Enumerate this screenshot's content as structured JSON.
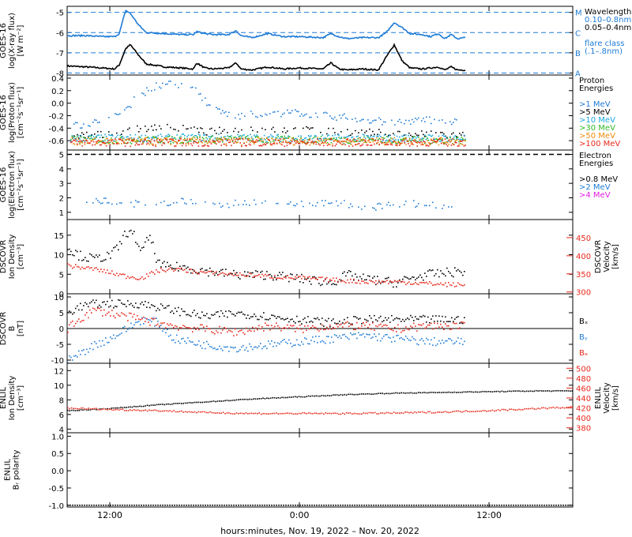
{
  "figure": {
    "xlabel": "hours:minutes, Nov. 19, 2022 – Nov. 20, 2022",
    "x_ticks": [
      "12:00",
      "0:00",
      "12:00"
    ],
    "x_tick_hours": [
      12,
      24,
      36
    ],
    "x_range_hours": [
      9.3,
      41.3
    ],
    "data_end_hours": 34.5
  },
  "colors": {
    "black": "#000000",
    "blue": "#1e7bd6",
    "sky": "#19a8e0",
    "red": "#e8281c",
    "green": "#33b82c",
    "orange": "#ee8c10",
    "magenta": "#e020e0"
  },
  "panels": [
    {
      "id": "xray",
      "ylabel": [
        "GOES-16",
        "log(X-ray flux)",
        "[W m⁻²]"
      ],
      "ylim": [
        -8.1,
        -4.7
      ],
      "yticks": [
        "-5",
        "-6",
        "-7",
        "-8"
      ],
      "ytick_values": [
        -5,
        -6,
        -7,
        -8
      ],
      "flare_levels": [
        {
          "label": "M",
          "value": -5
        },
        {
          "label": "C",
          "value": -6
        },
        {
          "label": "B",
          "value": -7
        },
        {
          "label": "A",
          "value": -8
        }
      ],
      "legend": [
        "Wavelength",
        "0.10–0.8nm",
        "0.05–0.4nm",
        "",
        "flare class",
        "(.1–.8nm)"
      ]
    },
    {
      "id": "proton",
      "ylabel": [
        "GOES-16",
        "log(Proton flux)",
        "[cm⁻²s⁻¹sr⁻¹]"
      ],
      "ylim": [
        -0.75,
        0.45
      ],
      "yticks": [
        "0.4",
        "0.2",
        "0.0",
        "-0.2",
        "-0.4",
        "-0.6"
      ],
      "ytick_values": [
        0.4,
        0.2,
        0.0,
        -0.2,
        -0.4,
        -0.6
      ],
      "legend": [
        "Proton",
        "Energies",
        "",
        ">1 MeV",
        ">5 MeV",
        ">10 MeV",
        ">30 MeV",
        ">50 MeV",
        ">100 MeV"
      ]
    },
    {
      "id": "electron",
      "ylabel": [
        "GOES-16",
        "log(Electron flux)",
        "[cm⁻²s⁻¹sr⁻¹]"
      ],
      "ylim": [
        0.5,
        5.3
      ],
      "yticks": [
        "5",
        "4",
        "3",
        "2",
        "1"
      ],
      "ytick_values": [
        5,
        4,
        3,
        2,
        1
      ],
      "legend": [
        "Electron",
        "Energies",
        "",
        ">0.8 MeV",
        ">2 MeV",
        ">4 MeV"
      ]
    },
    {
      "id": "dscovr_density",
      "ylabel": [
        "DSCOVR",
        "Ion Density",
        "[cm⁻³]"
      ],
      "ylim": [
        0,
        19
      ],
      "yticks": [
        "15",
        "10",
        "5",
        "0"
      ],
      "ytick_values": [
        15,
        10,
        5,
        0
      ],
      "ylabel_right": [
        "DSCOVR",
        "Velocity",
        "[km/s]"
      ],
      "y2lim": [
        295,
        500
      ],
      "y2ticks": [
        "450",
        "400",
        "350",
        "300"
      ],
      "y2tick_values": [
        450,
        400,
        350,
        300
      ]
    },
    {
      "id": "dscovr_b",
      "ylabel": [
        "DSCOVR",
        "B",
        "[nT]"
      ],
      "ylim": [
        -11,
        11
      ],
      "yticks": [
        "10",
        "5",
        "0",
        "-5",
        "-10"
      ],
      "ytick_values": [
        10,
        5,
        0,
        -5,
        -10
      ],
      "legend": [
        "Bₓ",
        "Bᵧ",
        "Bₔ"
      ]
    },
    {
      "id": "enlil_density",
      "ylabel": [
        "ENLIL",
        "Ion Density",
        "[cm⁻³]"
      ],
      "ylim": [
        3.5,
        13
      ],
      "yticks": [
        "12",
        "10",
        "8",
        "6",
        "4"
      ],
      "ytick_values": [
        12,
        10,
        8,
        6,
        4
      ],
      "ylabel_right": [
        "ENLIL",
        "Velocity",
        "[km/s]"
      ],
      "y2lim": [
        370,
        510
      ],
      "y2ticks": [
        "500",
        "480",
        "460",
        "440",
        "420",
        "400",
        "380"
      ],
      "y2tick_values": [
        500,
        480,
        460,
        440,
        420,
        400,
        380
      ]
    },
    {
      "id": "enlil_polarity",
      "ylabel": [
        "ENLIL",
        "Bᵣ polarity"
      ],
      "ylim": [
        -1.05,
        1.1
      ],
      "yticks": [
        "1.0",
        "0.5",
        "0.0",
        "-0.5",
        "-1.0"
      ],
      "ytick_values": [
        1.0,
        0.5,
        0.0,
        -0.5,
        -1.0
      ]
    }
  ],
  "chart_data": [
    {
      "type": "line",
      "panel": "xray",
      "x_unit": "hours since 00:00 Nov. 19, 2022",
      "series": [
        {
          "name": "0.10–0.8nm",
          "color": "#000000",
          "x": [
            9.3,
            10.5,
            11.5,
            12.3,
            12.6,
            13.0,
            13.3,
            13.8,
            14.3,
            15.5,
            16.5,
            17.3,
            17.5,
            18.0,
            18.5,
            19.5,
            20.0,
            20.3,
            21.0,
            22.0,
            23.0,
            24.0,
            25.5,
            26.0,
            26.5,
            27.0,
            28.0,
            29.0,
            29.5,
            30.0,
            30.5,
            31.0,
            31.8,
            32.3,
            32.8,
            33.2,
            33.6,
            34.0,
            34.5
          ],
          "y": [
            -7.65,
            -7.7,
            -7.75,
            -7.8,
            -7.6,
            -6.8,
            -6.6,
            -7.1,
            -7.55,
            -7.7,
            -7.75,
            -7.8,
            -7.5,
            -7.75,
            -7.8,
            -7.75,
            -7.5,
            -7.8,
            -7.85,
            -7.7,
            -7.8,
            -7.75,
            -7.8,
            -7.5,
            -7.8,
            -7.85,
            -7.8,
            -7.85,
            -7.2,
            -6.6,
            -7.4,
            -7.75,
            -7.8,
            -7.75,
            -7.7,
            -7.85,
            -7.7,
            -7.85,
            -7.85
          ]
        },
        {
          "name": "0.05–0.4nm",
          "color": "#1e7bd6",
          "x": [
            9.3,
            10.5,
            11.5,
            12.3,
            12.6,
            13.0,
            13.3,
            13.8,
            14.3,
            15.5,
            16.5,
            17.3,
            17.5,
            18.0,
            18.5,
            19.5,
            20.0,
            20.3,
            21.0,
            22.0,
            23.0,
            24.0,
            25.5,
            26.0,
            26.5,
            27.0,
            28.0,
            29.0,
            29.5,
            30.0,
            30.5,
            31.0,
            31.8,
            32.3,
            32.8,
            33.2,
            33.6,
            34.0,
            34.5
          ],
          "y": [
            -6.15,
            -6.15,
            -6.2,
            -6.2,
            -6.05,
            -4.9,
            -5.05,
            -5.6,
            -6.0,
            -6.05,
            -6.1,
            -6.1,
            -5.95,
            -6.05,
            -6.1,
            -6.1,
            -5.9,
            -6.15,
            -6.25,
            -6.05,
            -6.2,
            -6.2,
            -6.25,
            -6.05,
            -6.2,
            -6.3,
            -6.25,
            -6.25,
            -6.0,
            -5.5,
            -5.75,
            -6.05,
            -6.1,
            -6.2,
            -6.05,
            -6.3,
            -6.1,
            -6.3,
            -6.25
          ]
        }
      ]
    },
    {
      "type": "scatter",
      "panel": "proton",
      "series": [
        {
          "name": ">1 MeV",
          "color": "#1e7bd6",
          "x": [
            9.5,
            11.0,
            12.5,
            13.5,
            14.5,
            15.5,
            16.5,
            17.5,
            18.5,
            20.0,
            22.0,
            24.0,
            26.0,
            28.0,
            30.0,
            32.0,
            34.0
          ],
          "y": [
            -0.35,
            -0.3,
            -0.2,
            0.05,
            0.25,
            0.33,
            0.28,
            0.2,
            -0.1,
            -0.2,
            -0.15,
            -0.15,
            -0.2,
            -0.25,
            -0.3,
            -0.25,
            -0.3
          ]
        },
        {
          "name": ">5 MeV",
          "color": "#000000",
          "x": [
            9.5,
            12.0,
            15.0,
            18.0,
            21.0,
            24.0,
            27.0,
            30.0,
            33.0,
            34.5
          ],
          "y": [
            -0.5,
            -0.5,
            -0.35,
            -0.45,
            -0.4,
            -0.42,
            -0.45,
            -0.48,
            -0.5,
            -0.5
          ]
        },
        {
          "name": ">10 MeV",
          "color": "#19a8e0",
          "x": [
            9.5,
            14.0,
            19.0,
            24.0,
            29.0,
            34.5
          ],
          "y": [
            -0.55,
            -0.55,
            -0.54,
            -0.55,
            -0.55,
            -0.55
          ]
        },
        {
          "name": ">30 MeV",
          "color": "#33b82c",
          "x": [
            9.5,
            14.0,
            19.0,
            24.0,
            29.0,
            34.5
          ],
          "y": [
            -0.58,
            -0.58,
            -0.57,
            -0.58,
            -0.58,
            -0.58
          ]
        },
        {
          "name": ">50 MeV",
          "color": "#ee8c10",
          "x": [
            9.5,
            14.0,
            19.0,
            24.0,
            29.0,
            34.5
          ],
          "y": [
            -0.6,
            -0.6,
            -0.6,
            -0.6,
            -0.6,
            -0.6
          ]
        },
        {
          "name": ">100 MeV",
          "color": "#e8281c",
          "x": [
            9.5,
            14.0,
            19.0,
            24.0,
            29.0,
            34.5
          ],
          "y": [
            -0.62,
            -0.62,
            -0.62,
            -0.62,
            -0.62,
            -0.62
          ]
        }
      ]
    },
    {
      "type": "scatter",
      "panel": "electron",
      "series": [
        {
          "name": ">0.8 MeV",
          "color": "#000000",
          "x": [
            9.3,
            41.3
          ],
          "y": [
            5.0,
            5.0
          ]
        },
        {
          "name": ">2 MeV",
          "color": "#1e7bd6",
          "x": [
            10.5,
            12.5,
            14.5,
            16.5,
            18.5,
            20.5,
            22.5,
            24.5,
            26.5,
            28.5,
            30.5,
            32.5,
            34.0
          ],
          "y": [
            1.9,
            1.7,
            1.6,
            1.8,
            1.5,
            1.7,
            1.9,
            1.6,
            1.7,
            1.4,
            1.7,
            1.5,
            1.6
          ]
        },
        {
          "name": ">4 MeV",
          "color": "#e020e0",
          "x": [],
          "y": []
        }
      ]
    },
    {
      "type": "scatter",
      "panel": "dscovr_density",
      "series": [
        {
          "name": "Ion Density",
          "color": "#000000",
          "x": [
            9.3,
            10.0,
            11.0,
            12.0,
            12.5,
            13.0,
            13.5,
            14.0,
            14.5,
            15.0,
            15.5,
            16.5,
            18.0,
            20.0,
            22.0,
            24.0,
            26.0,
            27.0,
            28.0,
            30.0,
            32.0,
            34.5
          ],
          "y": [
            12,
            10,
            9,
            10,
            12,
            16,
            15,
            11,
            15,
            8,
            7,
            7,
            6,
            5,
            5,
            4,
            3,
            5,
            4,
            3,
            5,
            6
          ]
        },
        {
          "name": "Velocity",
          "color": "#e8281c",
          "x": [
            9.3,
            10.0,
            11.0,
            12.0,
            13.0,
            14.0,
            15.0,
            16.0,
            18.0,
            20.0,
            22.0,
            24.0,
            26.0,
            28.0,
            30.0,
            32.0,
            34.5
          ],
          "y": [
            375,
            370,
            365,
            355,
            345,
            340,
            360,
            365,
            355,
            350,
            345,
            340,
            335,
            330,
            330,
            325,
            320
          ]
        }
      ]
    },
    {
      "type": "scatter",
      "panel": "dscovr_b",
      "series": [
        {
          "name": "Bₓ",
          "color": "#000000",
          "x": [
            9.3,
            10.0,
            11.0,
            12.0,
            13.0,
            14.0,
            15.0,
            16.0,
            18.0,
            20.0,
            22.0,
            24.0,
            26.0,
            28.0,
            30.0,
            32.0,
            34.5
          ],
          "y": [
            5,
            7,
            8,
            8,
            8,
            8,
            7,
            6,
            4,
            5,
            4,
            3,
            2,
            3,
            3,
            3,
            3
          ]
        },
        {
          "name": "Bᵧ",
          "color": "#1e7bd6",
          "x": [
            9.3,
            10.0,
            11.0,
            12.0,
            13.0,
            14.0,
            15.0,
            16.0,
            18.0,
            20.0,
            22.0,
            24.0,
            26.0,
            28.0,
            30.0,
            32.0,
            34.5
          ],
          "y": [
            -10,
            -8,
            -5,
            -3,
            0,
            3,
            2,
            -3,
            -5,
            -6,
            -5,
            -4,
            -3,
            -2,
            -3,
            -4,
            -4
          ]
        },
        {
          "name": "Bₔ",
          "color": "#e8281c",
          "x": [
            9.3,
            10.0,
            11.0,
            12.0,
            13.0,
            14.0,
            15.0,
            16.0,
            18.0,
            20.0,
            22.0,
            24.0,
            26.0,
            28.0,
            30.0,
            32.0,
            34.5
          ],
          "y": [
            0,
            3,
            6,
            5,
            4,
            3,
            2,
            1,
            0,
            -1,
            1,
            0,
            1,
            1,
            0,
            1,
            1
          ]
        }
      ]
    },
    {
      "type": "line",
      "panel": "enlil_density",
      "series": [
        {
          "name": "Ion Density",
          "color": "#000000",
          "x": [
            9.3,
            12.0,
            15.0,
            18.0,
            21.0,
            24.0,
            27.0,
            30.0,
            33.0,
            36.0,
            39.0,
            41.3
          ],
          "y": [
            6.6,
            6.9,
            7.4,
            7.8,
            8.2,
            8.5,
            8.8,
            9.0,
            9.1,
            9.2,
            9.3,
            9.3
          ]
        },
        {
          "name": "Velocity",
          "color": "#e8281c",
          "x": [
            9.3,
            12.0,
            15.0,
            18.0,
            21.0,
            24.0,
            27.0,
            30.0,
            33.0,
            36.0,
            39.0,
            41.3
          ],
          "y": [
            421,
            418,
            416,
            412,
            410,
            410,
            410,
            411,
            413,
            416,
            420,
            423
          ]
        }
      ]
    },
    {
      "type": "line",
      "panel": "enlil_polarity",
      "series": [
        {
          "name": "Bᵣ polarity",
          "color": "#000000",
          "x": [
            9.3,
            41.3
          ],
          "y": [
            -1.0,
            -1.0
          ]
        }
      ]
    }
  ]
}
